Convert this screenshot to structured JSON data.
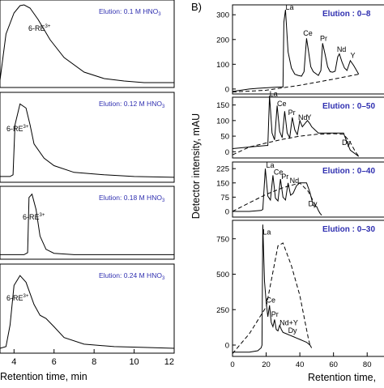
{
  "figure": {
    "panel_b_label": "B)"
  },
  "chart_data": [
    {
      "type": "line",
      "panel": "A",
      "xlabel": "Retention time, min",
      "x_ticks": [
        4,
        6,
        8,
        10,
        12
      ],
      "xlim": [
        3.3,
        12
      ],
      "subplots": [
        {
          "elution": "Elution: 0.1 M HNO",
          "elution_sub": "3",
          "peak_label": "6-RE",
          "peak_sup": "3+",
          "series": [
            {
              "x": [
                3.3,
                3.6,
                4.0,
                4.3,
                4.5,
                4.8,
                5.2,
                5.8,
                6.5,
                7.5,
                8.5,
                9.5,
                10.5,
                12.0
              ],
              "y": [
                0.05,
                0.62,
                0.88,
                0.97,
                0.98,
                0.94,
                0.8,
                0.55,
                0.33,
                0.15,
                0.07,
                0.04,
                0.02,
                0.02
              ]
            }
          ]
        },
        {
          "elution": "Elution: 0.12 M HNO",
          "elution_sub": "3",
          "peak_label": "6-RE",
          "peak_sup": "3+",
          "series": [
            {
              "x": [
                3.3,
                3.8,
                3.95,
                4.05,
                4.3,
                4.6,
                4.8,
                5.0,
                5.5,
                6.0,
                7.0,
                8.5,
                10.0,
                12.0
              ],
              "y": [
                0.03,
                0.03,
                0.05,
                0.65,
                0.9,
                0.85,
                0.65,
                0.42,
                0.25,
                0.16,
                0.08,
                0.05,
                0.03,
                0.02
              ]
            }
          ]
        },
        {
          "elution": "Elution: 0.18 M HNO",
          "elution_sub": "3",
          "peak_label": "6-RE",
          "peak_sup": "3+",
          "series": [
            {
              "x": [
                3.3,
                4.5,
                4.68,
                4.75,
                4.9,
                5.1,
                5.3,
                5.6,
                6.0,
                7.0,
                9.0,
                12.0
              ],
              "y": [
                0.02,
                0.02,
                0.05,
                0.88,
                0.93,
                0.7,
                0.3,
                0.1,
                0.04,
                0.02,
                0.02,
                0.02
              ]
            }
          ]
        },
        {
          "elution": "Elution: 0.24 M HNO",
          "elution_sub": "3",
          "peak_label": "6-RE",
          "peak_sup": "3+",
          "series": [
            {
              "x": [
                3.3,
                3.6,
                3.8,
                4.0,
                4.3,
                4.6,
                5.0,
                5.3,
                5.6,
                6.0,
                6.5,
                7.5,
                9.0,
                10.5,
                12.0
              ],
              "y": [
                0.02,
                0.04,
                0.3,
                0.78,
                0.9,
                0.82,
                0.55,
                0.42,
                0.38,
                0.28,
                0.15,
                0.07,
                0.04,
                0.03,
                0.02
              ]
            }
          ]
        }
      ]
    },
    {
      "type": "line",
      "panel": "B",
      "xlabel": "Retention time,",
      "ylabel": "Detector intensity, mAU",
      "x_ticks": [
        0,
        20,
        40,
        60,
        80
      ],
      "xlim": [
        0,
        90
      ],
      "subplots": [
        {
          "elution": "Elution : 0–8",
          "ylim": [
            -20,
            340
          ],
          "y_ticks": [
            0,
            100,
            200,
            300
          ],
          "series": [
            {
              "style": "solid",
              "x": [
                0,
                5,
                10,
                15,
                20,
                25,
                29,
                30,
                30.5,
                31.5,
                33,
                35,
                37,
                39,
                41,
                42.5,
                44,
                45,
                46.5,
                48,
                51,
                52.5,
                53.5,
                55,
                56.5,
                58,
                59.5,
                61,
                62.5,
                63.5,
                65,
                66.5,
                68,
                70,
                72,
                75
              ],
              "y": [
                -10,
                -5,
                0,
                3,
                5,
                7,
                8,
                8,
                270,
                320,
                150,
                85,
                60,
                55,
                52,
                70,
                205,
                160,
                90,
                70,
                55,
                75,
                185,
                140,
                90,
                70,
                68,
                72,
                130,
                142,
                110,
                85,
                75,
                115,
                95,
                60
              ]
            },
            {
              "style": "dashed",
              "x": [
                0,
                20,
                40,
                60,
                75
              ],
              "y": [
                -12,
                -5,
                15,
                40,
                60
              ]
            }
          ],
          "labels": [
            {
              "text": "La",
              "x": 31.5,
              "y": 320
            },
            {
              "text": "Ce",
              "x": 42,
              "y": 215
            },
            {
              "text": "Pr",
              "x": 52,
              "y": 195
            },
            {
              "text": "Nd",
              "x": 62,
              "y": 150
            },
            {
              "text": "Y",
              "x": 70,
              "y": 125
            }
          ]
        },
        {
          "elution": "Elution : 0–50",
          "ylim": [
            -20,
            175
          ],
          "y_ticks": [
            0,
            50,
            100,
            150
          ],
          "series": [
            {
              "style": "solid",
              "x": [
                0,
                10,
                20,
                21,
                22,
                23.5,
                25,
                26.5,
                28,
                29.5,
                31,
                32.5,
                34,
                35.5,
                37,
                38.5,
                40,
                41.5,
                43,
                44.5,
                46,
                47,
                49,
                51,
                55,
                60,
                66,
                68,
                70,
                75
              ],
              "y": [
                10,
                15,
                20,
                20,
                180,
                60,
                38,
                148,
                65,
                45,
                130,
                60,
                45,
                110,
                70,
                55,
                100,
                80,
                90,
                100,
                90,
                80,
                70,
                60,
                60,
                60,
                60,
                30,
                5,
                -15
              ]
            },
            {
              "style": "dashed",
              "x": [
                0,
                10,
                20,
                30,
                40,
                50,
                60,
                66,
                70,
                73,
                75
              ],
              "y": [
                -10,
                15,
                28,
                40,
                50,
                56,
                58,
                56,
                30,
                0,
                -15
              ]
            }
          ],
          "labels": [
            {
              "text": "La",
              "x": 22,
              "y": 178
            },
            {
              "text": "Ce",
              "x": 26.5,
              "y": 146
            },
            {
              "text": "Pr",
              "x": 33,
              "y": 118
            },
            {
              "text": "Nd",
              "x": 39,
              "y": 102
            },
            {
              "text": "Y",
              "x": 44,
              "y": 102
            },
            {
              "text": "Dy",
              "x": 65,
              "y": 22
            }
          ]
        },
        {
          "elution": "Elution : 0–40",
          "ylim": [
            -30,
            260
          ],
          "y_ticks": [
            0,
            75,
            150,
            225
          ],
          "series": [
            {
              "style": "solid",
              "x": [
                0,
                10,
                17,
                18,
                19.5,
                21,
                22.5,
                24,
                25.5,
                27,
                28.5,
                30,
                31.5,
                33,
                34.5,
                36,
                38,
                40,
                42,
                44,
                46,
                48,
                50,
                51,
                52,
                53
              ],
              "y": [
                0,
                0,
                5,
                10,
                225,
                80,
                60,
                190,
                70,
                55,
                170,
                75,
                60,
                150,
                85,
                95,
                135,
                150,
                150,
                150,
                100,
                30,
                25,
                5,
                -10,
                -20
              ]
            },
            {
              "style": "dashed",
              "x": [
                0,
                10,
                20,
                30,
                40,
                45,
                50
              ],
              "y": [
                0,
                45,
                90,
                125,
                150,
                105,
                20
              ]
            }
          ],
          "labels": [
            {
              "text": "La",
              "x": 20,
              "y": 230
            },
            {
              "text": "Ce",
              "x": 24.5,
              "y": 193
            },
            {
              "text": "Pr",
              "x": 29,
              "y": 171
            },
            {
              "text": "Nd",
              "x": 34,
              "y": 150
            },
            {
              "text": "Dy",
              "x": 45,
              "y": 27
            }
          ]
        },
        {
          "elution": "Elution : 0–30",
          "ylim": [
            -80,
            880
          ],
          "y_ticks": [
            0,
            250,
            500,
            750
          ],
          "series": [
            {
              "style": "solid",
              "x": [
                0,
                10,
                15,
                16,
                17,
                17.5,
                18,
                19,
                20,
                21,
                22,
                23,
                24,
                25,
                26,
                27,
                28,
                29,
                30,
                32,
                34,
                36,
                38,
                40,
                42,
                44,
                46,
                47
              ],
              "y": [
                -50,
                -50,
                -40,
                -30,
                -20,
                0,
                850,
                450,
                300,
                200,
                280,
                160,
                130,
                180,
                110,
                100,
                140,
                110,
                90,
                80,
                70,
                60,
                50,
                40,
                30,
                20,
                0,
                -20
              ]
            },
            {
              "style": "dashed",
              "x": [
                0,
                10,
                20,
                27,
                30,
                35,
                40,
                45,
                46
              ],
              "y": [
                -60,
                80,
                270,
                700,
                720,
                560,
                350,
                50,
                0
              ]
            }
          ],
          "labels": [
            {
              "text": "La",
              "x": 18,
              "y": 780
            },
            {
              "text": "Ce",
              "x": 20,
              "y": 300
            },
            {
              "text": "Pr",
              "x": 23,
              "y": 200
            },
            {
              "text": "Nd+Y",
              "x": 28,
              "y": 140
            },
            {
              "text": "Dy",
              "x": 33,
              "y": 85
            }
          ]
        }
      ]
    }
  ]
}
